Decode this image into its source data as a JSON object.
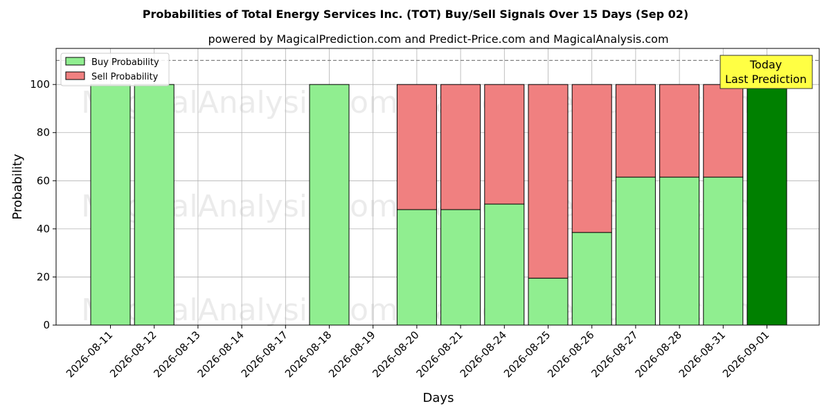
{
  "colors": {
    "buy": "#90ee90",
    "sell": "#f08080",
    "today_bar": "#008000",
    "today_box": "#ffff44",
    "grid": "#b0b0b0",
    "reference_line": "#808080"
  },
  "watermarks": [
    "MagicalAnalysis.com",
    "MagicalPrediction.com"
  ],
  "annotation": {
    "line1": "Today",
    "line2": "Last Prediction"
  },
  "chart_data": {
    "type": "bar",
    "stacked": true,
    "title": "Probabilities of Total Energy Services Inc. (TOT) Buy/Sell Signals Over 15 Days (Sep 02)",
    "subtitle": "powered by MagicalPrediction.com and Predict-Price.com and MagicalAnalysis.com",
    "xlabel": "Days",
    "ylabel": "Probability",
    "ylim": [
      0,
      115
    ],
    "yticks": [
      0,
      20,
      40,
      60,
      80,
      100
    ],
    "reference_line": 110,
    "grid": true,
    "legend_position": "top-left",
    "categories": [
      "2026-08-11",
      "2026-08-12",
      "2026-08-13",
      "2026-08-14",
      "2026-08-17",
      "2026-08-18",
      "2026-08-19",
      "2026-08-20",
      "2026-08-21",
      "2026-08-24",
      "2026-08-25",
      "2026-08-26",
      "2026-08-27",
      "2026-08-28",
      "2026-08-31",
      "2026-09-01"
    ],
    "series": [
      {
        "name": "Buy Probability",
        "values": [
          100,
          100,
          0,
          0,
          0,
          100,
          0,
          48,
          48,
          50.3,
          19.5,
          38.5,
          61.5,
          61.5,
          61.5,
          100
        ]
      },
      {
        "name": "Sell Probability",
        "values": [
          0,
          0,
          0,
          0,
          0,
          0,
          0,
          52,
          52,
          49.7,
          80.5,
          61.5,
          38.5,
          38.5,
          38.5,
          0
        ]
      }
    ],
    "highlight_category": "2026-09-01"
  }
}
